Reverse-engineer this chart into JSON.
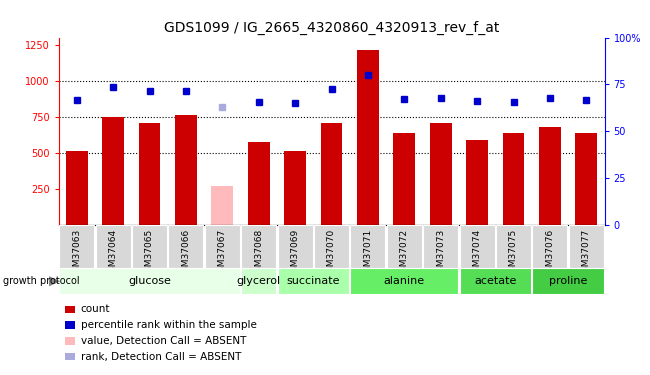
{
  "title": "GDS1099 / IG_2665_4320860_4320913_rev_f_at",
  "samples": [
    "GSM37063",
    "GSM37064",
    "GSM37065",
    "GSM37066",
    "GSM37067",
    "GSM37068",
    "GSM37069",
    "GSM37070",
    "GSM37071",
    "GSM37072",
    "GSM37073",
    "GSM37074",
    "GSM37075",
    "GSM37076",
    "GSM37077"
  ],
  "bar_values": [
    510,
    750,
    710,
    760,
    270,
    575,
    510,
    710,
    1210,
    640,
    710,
    590,
    635,
    680,
    640
  ],
  "bar_colors": [
    "#cc0000",
    "#cc0000",
    "#cc0000",
    "#cc0000",
    "#ffbbbb",
    "#cc0000",
    "#cc0000",
    "#cc0000",
    "#cc0000",
    "#cc0000",
    "#cc0000",
    "#cc0000",
    "#cc0000",
    "#cc0000",
    "#cc0000"
  ],
  "dot_values": [
    870,
    960,
    930,
    930,
    820,
    855,
    845,
    940,
    1040,
    875,
    880,
    860,
    850,
    880,
    870
  ],
  "dot_colors": [
    "#0000cc",
    "#0000cc",
    "#0000cc",
    "#0000cc",
    "#aaaadd",
    "#0000cc",
    "#0000cc",
    "#0000cc",
    "#0000cc",
    "#0000cc",
    "#0000cc",
    "#0000cc",
    "#0000cc",
    "#0000cc",
    "#0000cc"
  ],
  "ylim_left": [
    0,
    1300
  ],
  "ylim_right": [
    0,
    100
  ],
  "yticks_left": [
    250,
    500,
    750,
    1000,
    1250
  ],
  "yticks_right": [
    0,
    25,
    50,
    75,
    100
  ],
  "ytick_labels_right": [
    "0",
    "25",
    "50",
    "75",
    "100%"
  ],
  "hlines": [
    500,
    750,
    1000
  ],
  "groups": [
    {
      "label": "glucose",
      "start": 0,
      "end": 4,
      "color": "#e8ffe8"
    },
    {
      "label": "glycerol",
      "start": 5,
      "end": 5,
      "color": "#ccffcc"
    },
    {
      "label": "succinate",
      "start": 6,
      "end": 7,
      "color": "#aaffaa"
    },
    {
      "label": "alanine",
      "start": 8,
      "end": 10,
      "color": "#66ee66"
    },
    {
      "label": "acetate",
      "start": 11,
      "end": 12,
      "color": "#55dd55"
    },
    {
      "label": "proline",
      "start": 13,
      "end": 14,
      "color": "#44cc44"
    }
  ],
  "group_label_prefix": "growth protocol",
  "legend_items": [
    {
      "label": "count",
      "color": "#cc0000"
    },
    {
      "label": "percentile rank within the sample",
      "color": "#0000cc"
    },
    {
      "label": "value, Detection Call = ABSENT",
      "color": "#ffbbbb"
    },
    {
      "label": "rank, Detection Call = ABSENT",
      "color": "#aaaadd"
    }
  ],
  "title_fontsize": 10,
  "tick_fontsize": 7,
  "sample_fontsize": 6.5,
  "group_fontsize": 8,
  "legend_fontsize": 7.5
}
